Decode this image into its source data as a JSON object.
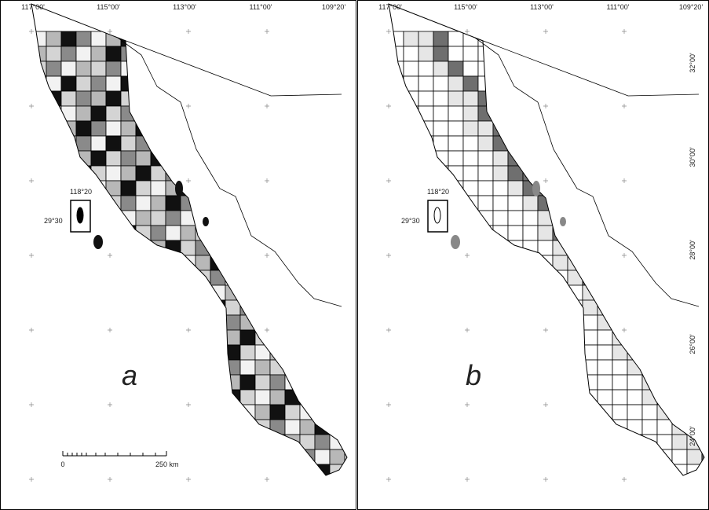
{
  "panels": [
    {
      "label": "a",
      "longitude_labels": [
        "117°00'",
        "115°00'",
        "113°00'",
        "111°00'",
        "109°20'"
      ],
      "inset": {
        "longitude": "118°20",
        "latitude": "29°30"
      },
      "scale": {
        "start": "0",
        "end": "250 km"
      }
    },
    {
      "label": "b",
      "longitude_labels": [
        "117°00'",
        "115°00'",
        "113°00'",
        "111°00'",
        "109°20'"
      ],
      "latitude_labels": [
        "32°00'",
        "30°00'",
        "28°00'",
        "26°00'",
        "24°00'"
      ],
      "inset": {
        "longitude": "118°20",
        "latitude": "29°30"
      }
    }
  ]
}
